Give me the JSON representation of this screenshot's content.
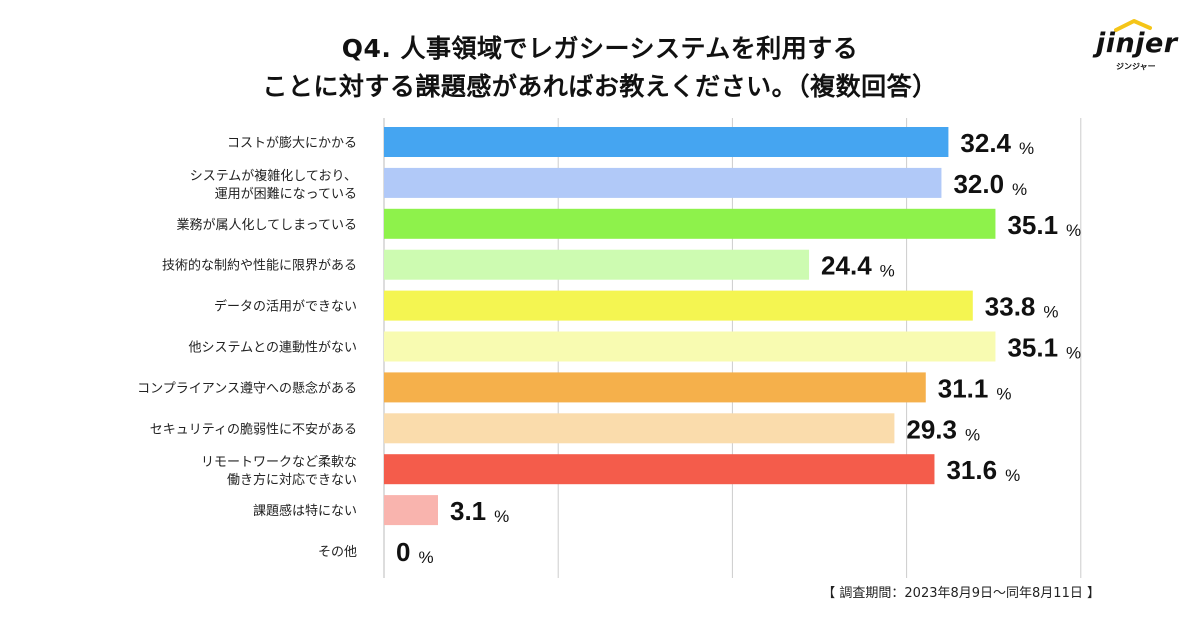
{
  "title": {
    "line1": "Q4. 人事領域でレガシーシステムを利用する",
    "line2": "ことに対する課題感があればお教えください。（複数回答）"
  },
  "logo": {
    "word": "jinjer",
    "sub": "ジンジャー"
  },
  "footnote": "【 調査期間：2023年8月9日〜同年8月11日 】",
  "chart_data": {
    "type": "bar",
    "orientation": "horizontal",
    "title": "Q4. 人事領域でレガシーシステムを利用することに対する課題感があればお教えください。（複数回答）",
    "unit": "%",
    "xlim": [
      0,
      40
    ],
    "grid": true,
    "categories": [
      [
        "コストが膨大にかかる"
      ],
      [
        "システムが複雑化しており、",
        "運用が困難になっている"
      ],
      [
        "業務が属人化してしまっている"
      ],
      [
        "技術的な制約や性能に限界がある"
      ],
      [
        "データの活用ができない"
      ],
      [
        "他システムとの連動性がない"
      ],
      [
        "コンプライアンス遵守への懸念がある"
      ],
      [
        "セキュリティの脆弱性に不安がある"
      ],
      [
        "リモートワークなど柔軟な",
        "働き方に対応できない"
      ],
      [
        "課題感は特にない"
      ],
      [
        "その他"
      ]
    ],
    "values": [
      32.4,
      32.0,
      35.1,
      24.4,
      33.8,
      35.1,
      31.1,
      29.3,
      31.6,
      3.1,
      0
    ],
    "value_labels": [
      "32.4",
      "32.0",
      "35.1",
      "24.4",
      "33.8",
      "35.1",
      "31.1",
      "29.3",
      "31.6",
      "3.1",
      "0"
    ],
    "colors": [
      "#45a5f1",
      "#b1c9f8",
      "#8ef24b",
      "#cdfbb1",
      "#f4f551",
      "#f8fbb1",
      "#f5b04b",
      "#fadcac",
      "#f45c4b",
      "#f9b4ae",
      "#ffffff"
    ]
  }
}
